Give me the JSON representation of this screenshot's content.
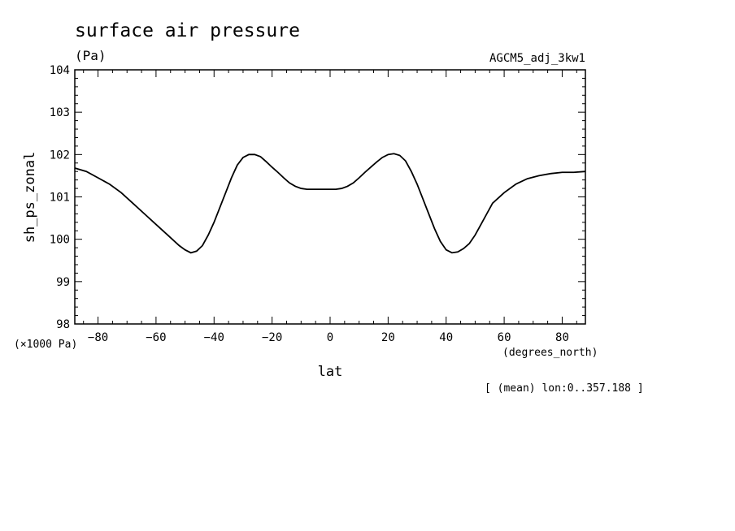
{
  "chart_data": {
    "type": "line",
    "title": "surface air pressure",
    "units": "(Pa)",
    "experiment": "AGCM5_adj_3kw1",
    "ylabel": "sh_ps_zonal",
    "yscale_note": "(×1000 Pa)",
    "xlabel": "lat",
    "xunits": "(degrees_north)",
    "footnote": "[ (mean) lon:0..357.188 ]",
    "xlim": [
      -88,
      88
    ],
    "ylim": [
      98,
      104
    ],
    "xticks": [
      -80,
      -60,
      -40,
      -20,
      0,
      20,
      40,
      60,
      80
    ],
    "xtick_labels": [
      "−80",
      "−60",
      "−40",
      "−20",
      "0",
      "20",
      "40",
      "60",
      "80"
    ],
    "yticks": [
      98,
      99,
      100,
      101,
      102,
      103,
      104
    ],
    "ytick_labels": [
      "98",
      "99",
      "100",
      "101",
      "102",
      "103",
      "104"
    ],
    "series": [
      {
        "x": [
          -88,
          -84,
          -80,
          -76,
          -72,
          -68,
          -64,
          -60,
          -56,
          -52,
          -50,
          -48,
          -46,
          -44,
          -42,
          -40,
          -38,
          -36,
          -34,
          -32,
          -30,
          -28,
          -26,
          -24,
          -22,
          -20,
          -18,
          -16,
          -14,
          -12,
          -10,
          -8,
          -6,
          -4,
          -2,
          0,
          2,
          4,
          6,
          8,
          10,
          12,
          14,
          16,
          18,
          20,
          22,
          24,
          26,
          28,
          30,
          32,
          34,
          36,
          38,
          40,
          42,
          44,
          46,
          48,
          50,
          52,
          54,
          56,
          60,
          64,
          68,
          72,
          76,
          80,
          84,
          88
        ],
        "y": [
          101.68,
          101.6,
          101.45,
          101.3,
          101.1,
          100.85,
          100.6,
          100.35,
          100.1,
          99.85,
          99.75,
          99.68,
          99.72,
          99.85,
          100.1,
          100.4,
          100.75,
          101.1,
          101.45,
          101.75,
          101.93,
          102.0,
          102.0,
          101.95,
          101.83,
          101.7,
          101.58,
          101.45,
          101.33,
          101.25,
          101.2,
          101.18,
          101.18,
          101.18,
          101.18,
          101.18,
          101.18,
          101.2,
          101.25,
          101.33,
          101.45,
          101.58,
          101.7,
          101.82,
          101.93,
          102.0,
          102.02,
          101.98,
          101.85,
          101.6,
          101.3,
          100.95,
          100.6,
          100.25,
          99.95,
          99.75,
          99.68,
          99.7,
          99.78,
          99.9,
          100.1,
          100.35,
          100.6,
          100.85,
          101.1,
          101.3,
          101.43,
          101.5,
          101.55,
          101.58,
          101.58,
          101.6
        ]
      }
    ]
  }
}
